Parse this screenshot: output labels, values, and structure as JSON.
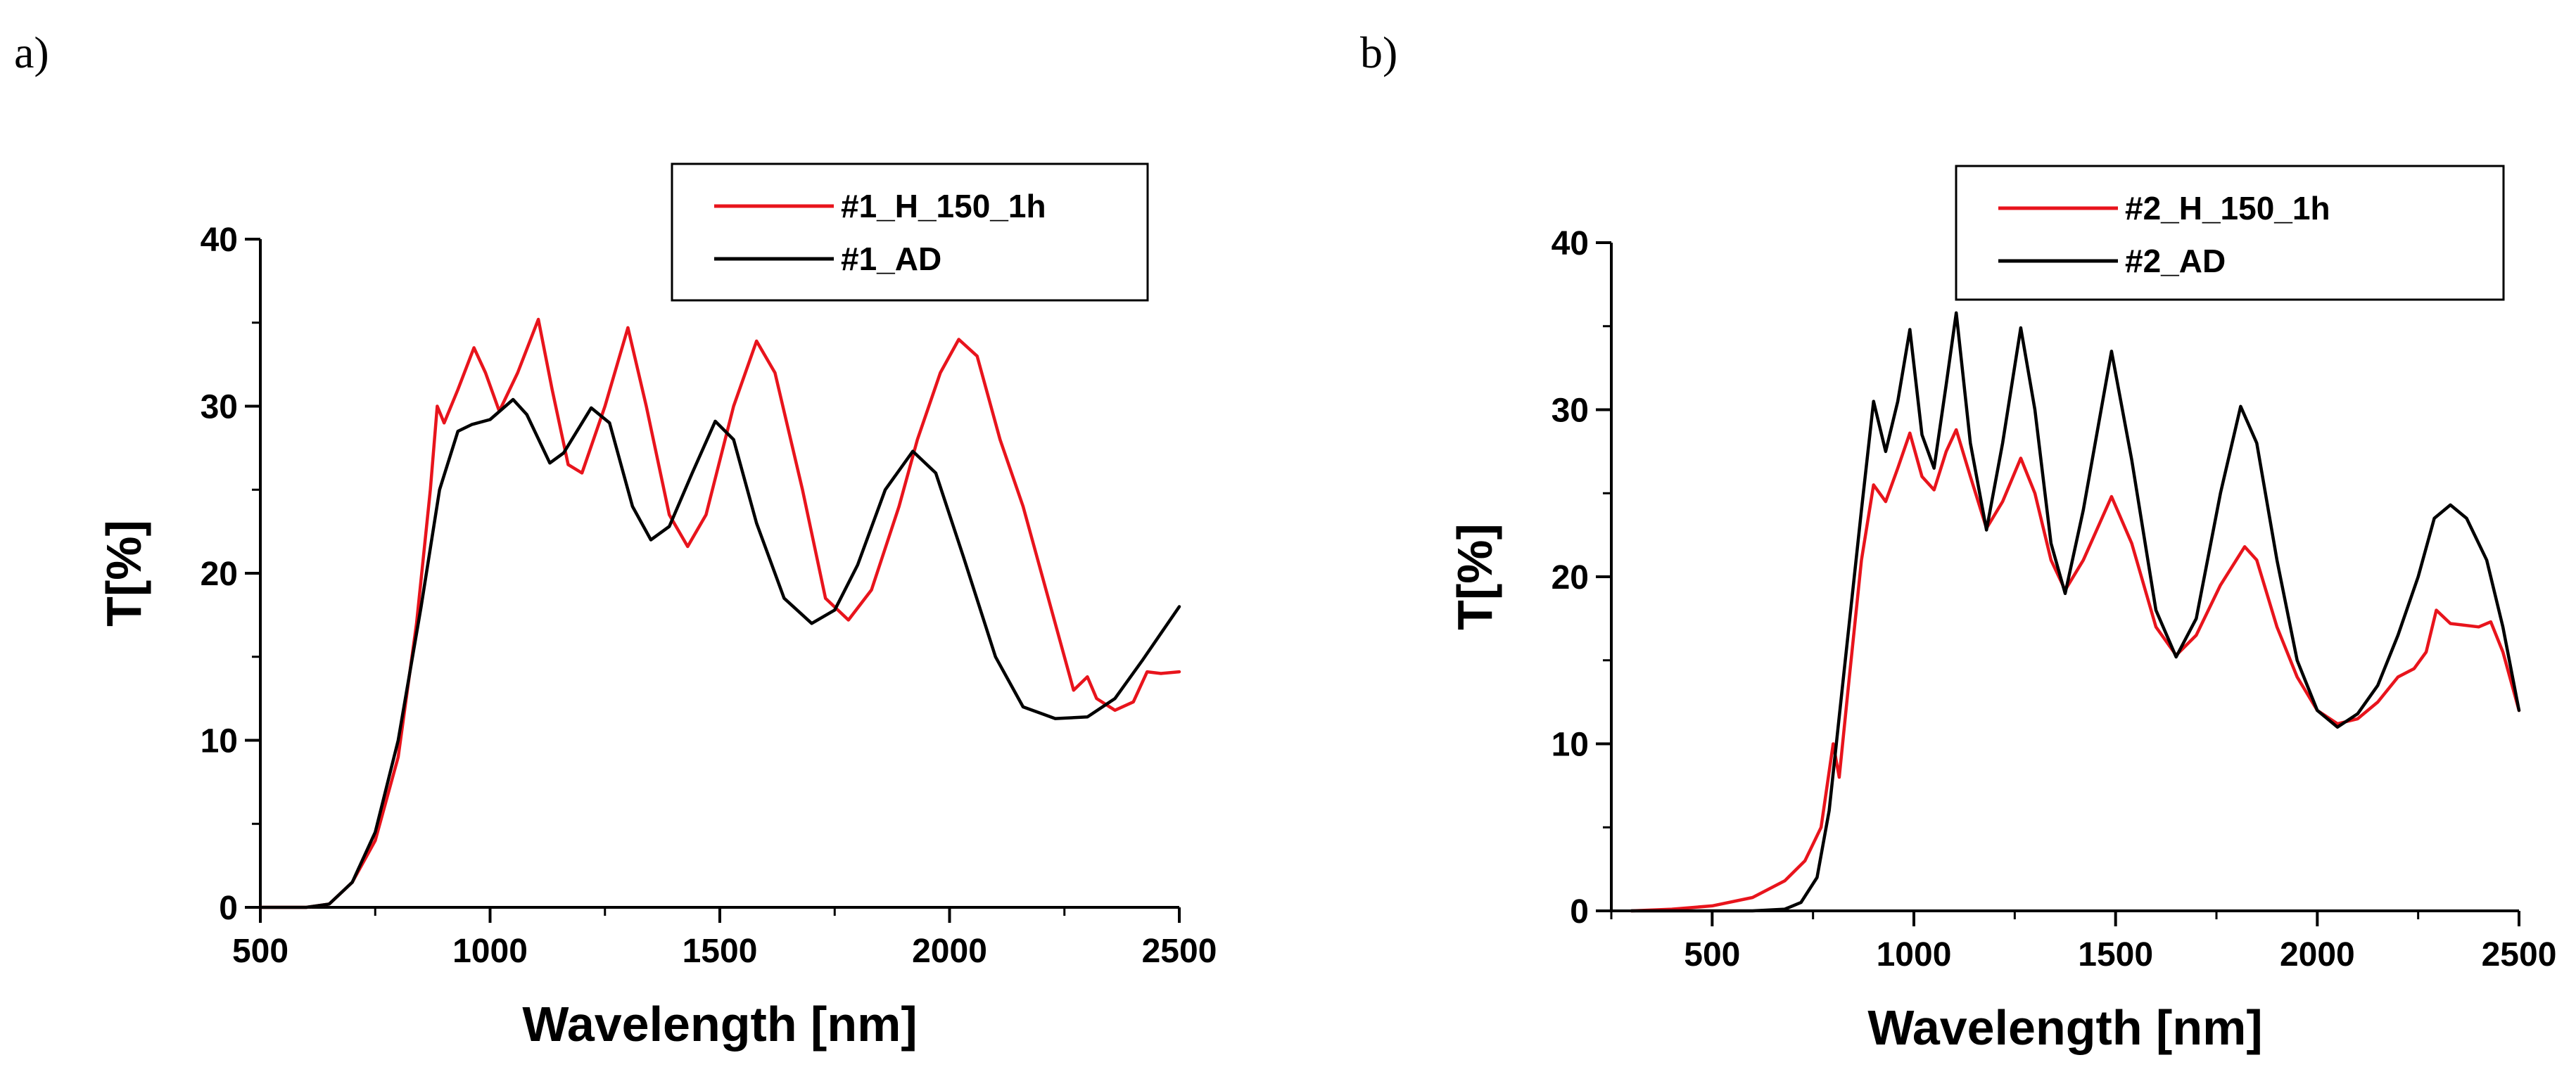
{
  "chart_data": [
    {
      "type": "line",
      "panel_label": "a)",
      "xlabel": "Wavelength [nm]",
      "ylabel": "T[%]",
      "xlim": [
        500,
        2500
      ],
      "ylim": [
        0,
        40
      ],
      "xticks": [
        500,
        1000,
        1500,
        2000,
        2500
      ],
      "yticks": [
        0,
        10,
        20,
        30,
        40
      ],
      "xtick_labels": [
        "500",
        "1000",
        "1500",
        "2000",
        "2500"
      ],
      "ytick_labels": [
        "0",
        "10",
        "20",
        "30",
        "40"
      ],
      "legend_position": "top-right",
      "series": [
        {
          "name": "#1_H_150_1h",
          "color": "#e8141c",
          "points": [
            [
              500,
              0
            ],
            [
              600,
              0
            ],
            [
              650,
              0.2
            ],
            [
              700,
              1.5
            ],
            [
              750,
              4
            ],
            [
              800,
              9
            ],
            [
              840,
              17
            ],
            [
              870,
              25
            ],
            [
              885,
              30
            ],
            [
              900,
              29
            ],
            [
              930,
              31
            ],
            [
              965,
              33.5
            ],
            [
              990,
              32
            ],
            [
              1020,
              29.7
            ],
            [
              1060,
              32
            ],
            [
              1105,
              35.2
            ],
            [
              1135,
              31
            ],
            [
              1170,
              26.5
            ],
            [
              1200,
              26
            ],
            [
              1250,
              30
            ],
            [
              1300,
              34.7
            ],
            [
              1340,
              30
            ],
            [
              1390,
              23.5
            ],
            [
              1430,
              21.6
            ],
            [
              1470,
              23.5
            ],
            [
              1530,
              30
            ],
            [
              1580,
              33.9
            ],
            [
              1620,
              32
            ],
            [
              1680,
              25
            ],
            [
              1730,
              18.5
            ],
            [
              1780,
              17.2
            ],
            [
              1830,
              19
            ],
            [
              1860,
              21.5
            ],
            [
              1890,
              24
            ],
            [
              1930,
              28
            ],
            [
              1980,
              32
            ],
            [
              2020,
              34
            ],
            [
              2060,
              33
            ],
            [
              2110,
              28
            ],
            [
              2160,
              24
            ],
            [
              2200,
              20
            ],
            [
              2240,
              16
            ],
            [
              2270,
              13
            ],
            [
              2300,
              13.8
            ],
            [
              2320,
              12.5
            ],
            [
              2360,
              11.8
            ],
            [
              2400,
              12.3
            ],
            [
              2430,
              14.1
            ],
            [
              2460,
              14
            ],
            [
              2500,
              14.1
            ]
          ]
        },
        {
          "name": "#1_AD",
          "color": "#000000",
          "points": [
            [
              500,
              0
            ],
            [
              600,
              0
            ],
            [
              650,
              0.2
            ],
            [
              700,
              1.5
            ],
            [
              750,
              4.5
            ],
            [
              800,
              10
            ],
            [
              850,
              18
            ],
            [
              890,
              25
            ],
            [
              930,
              28.5
            ],
            [
              960,
              28.9
            ],
            [
              1000,
              29.2
            ],
            [
              1050,
              30.4
            ],
            [
              1080,
              29.5
            ],
            [
              1130,
              26.6
            ],
            [
              1160,
              27.2
            ],
            [
              1220,
              29.9
            ],
            [
              1260,
              29
            ],
            [
              1310,
              24
            ],
            [
              1350,
              22
            ],
            [
              1390,
              22.8
            ],
            [
              1440,
              26
            ],
            [
              1490,
              29.1
            ],
            [
              1530,
              28
            ],
            [
              1580,
              23
            ],
            [
              1640,
              18.5
            ],
            [
              1700,
              17
            ],
            [
              1750,
              17.8
            ],
            [
              1800,
              20.5
            ],
            [
              1860,
              25
            ],
            [
              1920,
              27.3
            ],
            [
              1970,
              26
            ],
            [
              2030,
              21
            ],
            [
              2100,
              15
            ],
            [
              2160,
              12
            ],
            [
              2230,
              11.3
            ],
            [
              2300,
              11.4
            ],
            [
              2360,
              12.5
            ],
            [
              2420,
              14.8
            ],
            [
              2470,
              16.8
            ],
            [
              2500,
              18
            ]
          ]
        }
      ]
    },
    {
      "type": "line",
      "panel_label": "b)",
      "xlabel": "Wavelength [nm]",
      "ylabel": "T[%]",
      "xlim": [
        250,
        2500
      ],
      "ylim": [
        0,
        40
      ],
      "xticks": [
        500,
        1000,
        1500,
        2000,
        2500
      ],
      "yticks": [
        0,
        10,
        20,
        30,
        40
      ],
      "xtick_labels": [
        "500",
        "1000",
        "1500",
        "2000",
        "2500"
      ],
      "ytick_labels": [
        "0",
        "10",
        "20",
        "30",
        "40"
      ],
      "legend_position": "top-right",
      "series": [
        {
          "name": "#2_H_150_1h",
          "color": "#e8141c",
          "points": [
            [
              300,
              0
            ],
            [
              400,
              0.1
            ],
            [
              500,
              0.3
            ],
            [
              600,
              0.8
            ],
            [
              680,
              1.8
            ],
            [
              730,
              3
            ],
            [
              770,
              5
            ],
            [
              800,
              10
            ],
            [
              815,
              8
            ],
            [
              840,
              14
            ],
            [
              870,
              21
            ],
            [
              900,
              25.5
            ],
            [
              930,
              24.5
            ],
            [
              960,
              26.5
            ],
            [
              990,
              28.6
            ],
            [
              1020,
              26
            ],
            [
              1050,
              25.2
            ],
            [
              1080,
              27.5
            ],
            [
              1105,
              28.8
            ],
            [
              1140,
              26
            ],
            [
              1180,
              22.9
            ],
            [
              1220,
              24.5
            ],
            [
              1265,
              27.1
            ],
            [
              1300,
              25
            ],
            [
              1340,
              21
            ],
            [
              1375,
              19.2
            ],
            [
              1420,
              21
            ],
            [
              1490,
              24.8
            ],
            [
              1540,
              22
            ],
            [
              1600,
              17
            ],
            [
              1650,
              15.3
            ],
            [
              1700,
              16.5
            ],
            [
              1760,
              19.5
            ],
            [
              1820,
              21.8
            ],
            [
              1850,
              21
            ],
            [
              1900,
              17
            ],
            [
              1950,
              14
            ],
            [
              2000,
              12
            ],
            [
              2050,
              11.2
            ],
            [
              2100,
              11.5
            ],
            [
              2150,
              12.5
            ],
            [
              2200,
              14
            ],
            [
              2240,
              14.5
            ],
            [
              2270,
              15.5
            ],
            [
              2295,
              18
            ],
            [
              2330,
              17.2
            ],
            [
              2400,
              17
            ],
            [
              2430,
              17.3
            ],
            [
              2460,
              15.5
            ],
            [
              2500,
              12
            ]
          ]
        },
        {
          "name": "#2_AD",
          "color": "#000000",
          "points": [
            [
              300,
              0
            ],
            [
              500,
              0
            ],
            [
              600,
              0
            ],
            [
              680,
              0.1
            ],
            [
              720,
              0.5
            ],
            [
              760,
              2
            ],
            [
              790,
              6
            ],
            [
              830,
              15
            ],
            [
              870,
              24
            ],
            [
              900,
              30.5
            ],
            [
              930,
              27.5
            ],
            [
              960,
              30.5
            ],
            [
              990,
              34.8
            ],
            [
              1020,
              28.5
            ],
            [
              1050,
              26.5
            ],
            [
              1080,
              31.5
            ],
            [
              1105,
              35.8
            ],
            [
              1140,
              28
            ],
            [
              1180,
              22.8
            ],
            [
              1220,
              28
            ],
            [
              1265,
              34.9
            ],
            [
              1300,
              30
            ],
            [
              1340,
              22
            ],
            [
              1375,
              19
            ],
            [
              1420,
              24
            ],
            [
              1490,
              33.5
            ],
            [
              1540,
              27
            ],
            [
              1600,
              18
            ],
            [
              1650,
              15.2
            ],
            [
              1700,
              17.5
            ],
            [
              1760,
              25
            ],
            [
              1810,
              30.2
            ],
            [
              1850,
              28
            ],
            [
              1900,
              21
            ],
            [
              1950,
              15
            ],
            [
              2000,
              12
            ],
            [
              2050,
              11
            ],
            [
              2100,
              11.8
            ],
            [
              2150,
              13.5
            ],
            [
              2200,
              16.5
            ],
            [
              2250,
              20
            ],
            [
              2290,
              23.5
            ],
            [
              2330,
              24.3
            ],
            [
              2370,
              23.5
            ],
            [
              2420,
              21
            ],
            [
              2460,
              17
            ],
            [
              2500,
              12
            ]
          ]
        }
      ]
    }
  ]
}
